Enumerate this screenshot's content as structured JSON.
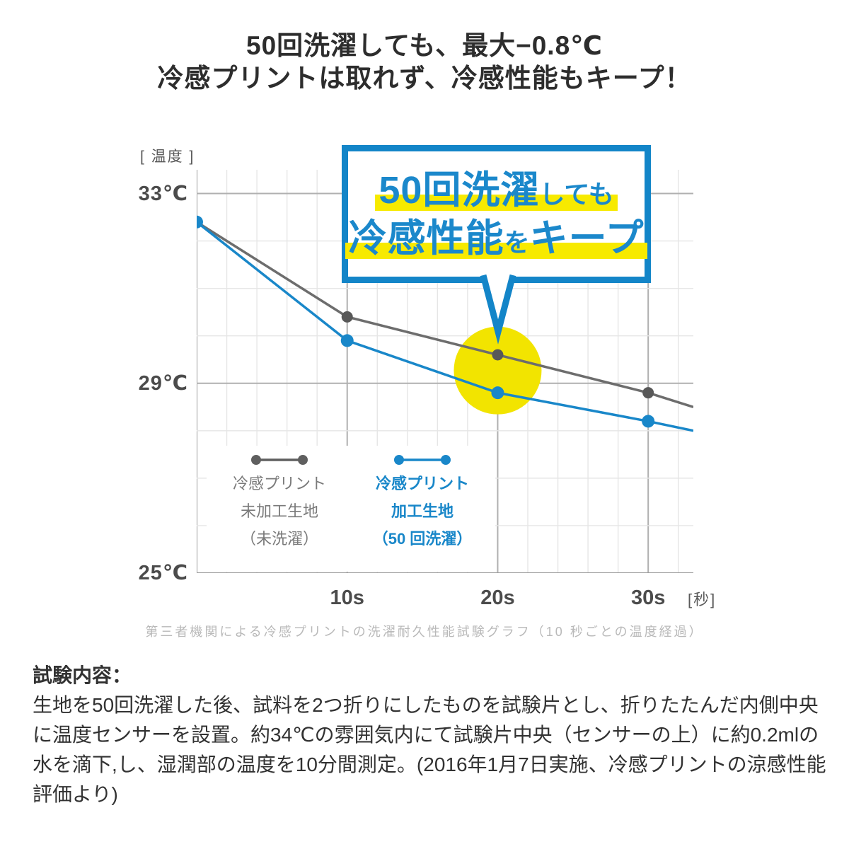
{
  "title": {
    "line1": "50回洗濯しても、最大−0.8℃",
    "line2": "冷感プリントは取れず、冷感性能もキープ！"
  },
  "chart_data": {
    "type": "line",
    "x": [
      0,
      10,
      20,
      30,
      33
    ],
    "xlim": [
      0,
      33
    ],
    "ylim": [
      25,
      33.5
    ],
    "grid": true,
    "ylabel": "[ 温度 ]",
    "xlabel": "[秒]",
    "yticks": [
      {
        "value": 33,
        "label": "33℃"
      },
      {
        "value": 29,
        "label": "29℃"
      },
      {
        "value": 25,
        "label": "25℃"
      }
    ],
    "xticks": [
      {
        "value": 10,
        "label": "10s"
      },
      {
        "value": 20,
        "label": "20s"
      },
      {
        "value": 30,
        "label": "30s"
      }
    ],
    "series": [
      {
        "name": "冷感プリント未加工生地（未洗濯）",
        "color": "#6d6d6d",
        "marker_color": "#585858",
        "marker_radius": 8,
        "values": [
          32.4,
          30.4,
          29.6,
          28.8,
          28.5
        ],
        "markers": [
          0,
          10,
          20,
          30
        ]
      },
      {
        "name": "冷感プリント加工生地（50回洗濯）",
        "color": "#1987c9",
        "marker_color": "#1987c9",
        "marker_radius": 9,
        "values": [
          32.4,
          29.9,
          28.8,
          28.2,
          28.0
        ],
        "markers": [
          0,
          10,
          20,
          30
        ]
      }
    ],
    "annotation_circle": {
      "t": 20,
      "temp": 29.27,
      "radius_px": 62,
      "color": "#f2e400"
    }
  },
  "callout": {
    "line1_big": "50回洗濯",
    "line1_small": "しても",
    "line2_big1": "冷感性能",
    "line2_small": "を",
    "line2_big2": "キープ",
    "border_color": "#1385c8",
    "text_color": "#1b88cb",
    "highlight_color": "#f7ea00"
  },
  "legend": {
    "items": [
      {
        "label_lines": [
          "冷感プリント",
          "未加工生地",
          "（未洗濯）"
        ],
        "text_color": "#7a7a7a",
        "symbol_color": "#5f5f5f"
      },
      {
        "label_lines": [
          "冷感プリント",
          "加工生地",
          "（50 回洗濯）"
        ],
        "text_color": "#1987c9",
        "symbol_color": "#1987c9"
      }
    ]
  },
  "caption": "第三者機関による冷感プリントの洗濯耐久性能試験グラフ（10 秒ごとの温度経過）",
  "test_description": {
    "heading": "試験内容：",
    "body": "生地を50回洗濯した後、試料を2つ折りにしたものを試験片とし、折りたたんだ内側中央に温度センサーを設置。約34℃の雰囲気内にて試験片中央（センサーの上）に約0.2mlの水を滴下,し、湿潤部の温度を10分間測定。(2016年1月7日実施、冷感プリントの涼感性能評価より)"
  }
}
